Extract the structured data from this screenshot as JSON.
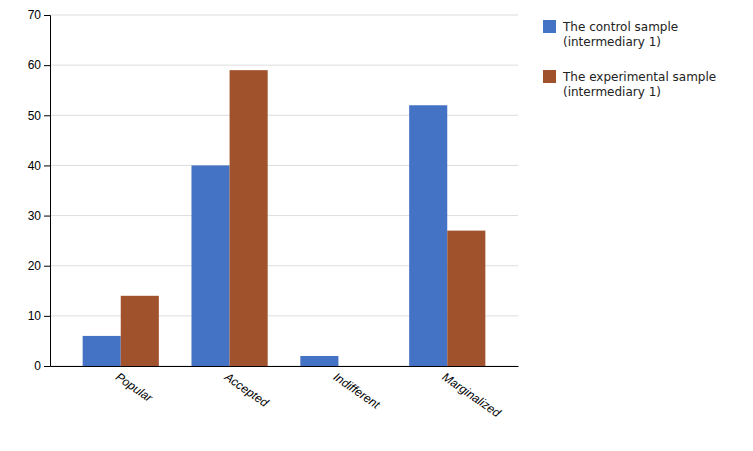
{
  "chart_data": {
    "type": "bar",
    "categories": [
      "Popular",
      "Accepted",
      "Indifferent",
      "Marginalized"
    ],
    "series": [
      {
        "name": "The control sample\n(intermediary 1)",
        "color": "#4472C4",
        "values": [
          6,
          40,
          2,
          52
        ]
      },
      {
        "name": "The experimental sample\n(intermediary 1)",
        "color": "#A0522D",
        "values": [
          14,
          59,
          0,
          27
        ]
      }
    ],
    "ylim": [
      0,
      70
    ],
    "yticks": [
      0,
      10,
      20,
      30,
      40,
      50,
      60,
      70
    ],
    "grid": true,
    "legend": "right"
  }
}
